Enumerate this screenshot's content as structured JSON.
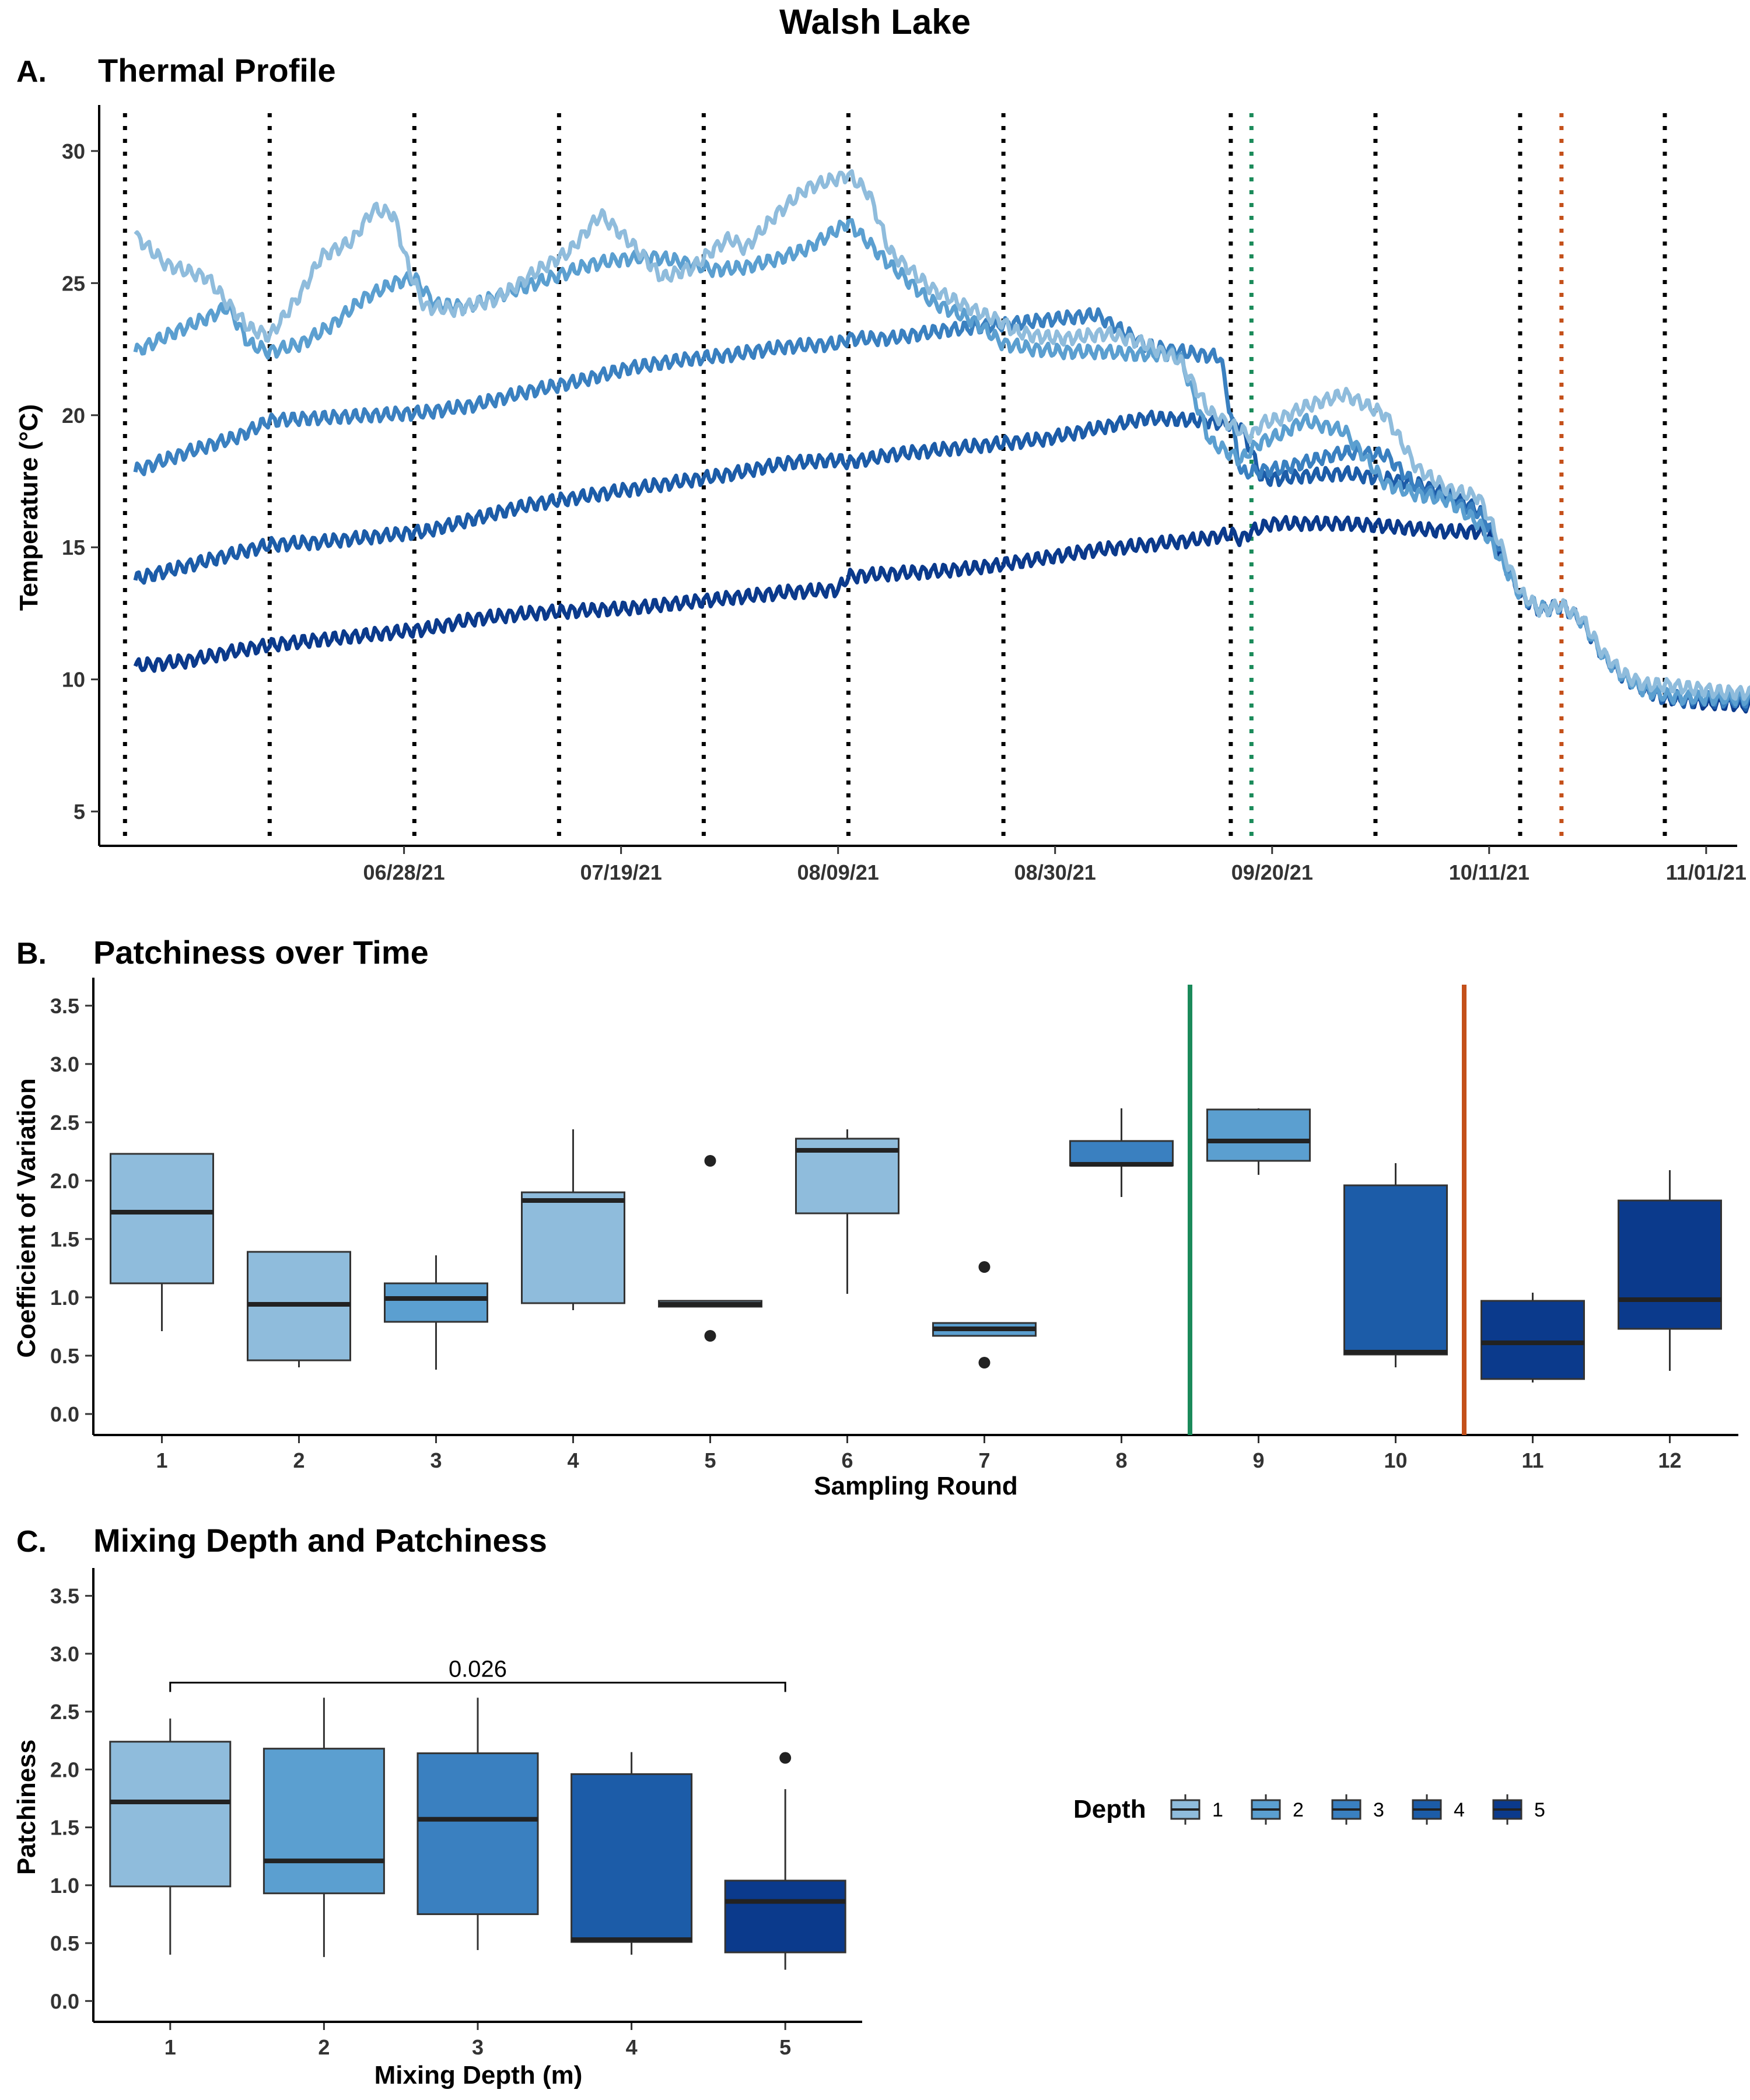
{
  "figure_title": "Walsh Lake",
  "colors": {
    "depth1": "#8fbcdc",
    "depth2": "#5b9fd0",
    "depth3": "#3a80c0",
    "depth4": "#1c5ca8",
    "depth5": "#0b3a8c",
    "green_line": "#1b8a5a",
    "orange_line": "#c4501a",
    "sampling_line": "#000000"
  },
  "chart_data": [
    {
      "id": "A",
      "panel_label": "A.",
      "type": "line",
      "title": "Thermal Profile",
      "xlabel": "",
      "ylabel": "Temperature (°C)",
      "ylim": [
        3.7,
        31.3
      ],
      "yticks": [
        5,
        10,
        15,
        20,
        25,
        30
      ],
      "xlim_days": [
        -16.5,
        142
      ],
      "x_ticks": [
        {
          "day": 13,
          "label": "06/28/21"
        },
        {
          "day": 34,
          "label": "07/19/21"
        },
        {
          "day": 55,
          "label": "08/09/21"
        },
        {
          "day": 76,
          "label": "08/30/21"
        },
        {
          "day": 97,
          "label": "09/20/21"
        },
        {
          "day": 118,
          "label": "10/11/21"
        },
        {
          "day": 139,
          "label": "11/01/21"
        }
      ],
      "sampling_days": [
        -14,
        0,
        14,
        28,
        42,
        56,
        71,
        93,
        107,
        121,
        135,
        146
      ],
      "green_line_day": 95,
      "orange_line_day": 125,
      "series": [
        {
          "name": "1",
          "x": [
            -13,
            -10,
            -6,
            -4,
            -2,
            0,
            3,
            5,
            8,
            10,
            12,
            13.5,
            15,
            18,
            22,
            26,
            29,
            32,
            35,
            38,
            41,
            43,
            44.5,
            46,
            49,
            52,
            56,
            58,
            60,
            64,
            68,
            71,
            72,
            74,
            77,
            81,
            84,
            88,
            91,
            94,
            95,
            96,
            98,
            100,
            104,
            108,
            111,
            114,
            117,
            118,
            121,
            123,
            125,
            127,
            129,
            131,
            133,
            135,
            137,
            139,
            141,
            143,
            146
          ],
          "y": [
            26.8,
            25.7,
            25.2,
            24.2,
            23.3,
            23.0,
            24.6,
            26.0,
            26.6,
            27.8,
            27.6,
            25.5,
            24.1,
            24.0,
            24.4,
            25.5,
            26.2,
            27.6,
            26.5,
            25.2,
            25.6,
            26.3,
            26.7,
            26.3,
            27.6,
            28.6,
            29.1,
            28.4,
            26.2,
            24.8,
            24.0,
            23.5,
            23.2,
            23.0,
            22.9,
            23.1,
            22.8,
            22.1,
            20.1,
            19.4,
            19.2,
            19.7,
            19.9,
            20.3,
            20.8,
            20.0,
            18.0,
            17.2,
            16.9,
            16.1,
            13.3,
            12.6,
            12.8,
            12.3,
            11.0,
            10.2,
            9.8,
            9.8,
            9.7,
            9.6,
            9.5,
            9.5,
            9.3
          ]
        },
        {
          "name": "2",
          "x": [
            -13,
            -10,
            -6,
            -4,
            -2,
            0,
            3,
            6,
            9,
            12,
            14,
            16,
            19,
            22,
            25,
            28,
            31,
            34,
            37,
            40,
            43,
            46,
            49,
            52,
            56,
            60,
            64,
            68,
            71,
            74,
            77,
            81,
            84,
            88,
            91,
            94,
            95,
            96,
            98,
            100,
            104,
            108,
            111,
            114,
            117,
            118,
            121,
            123,
            125,
            127,
            129,
            131,
            133,
            135,
            137,
            139,
            141,
            143,
            146
          ],
          "y": [
            22.4,
            23.0,
            23.7,
            24.1,
            22.7,
            22.4,
            22.7,
            23.4,
            24.4,
            25.0,
            25.2,
            24.2,
            24.1,
            24.5,
            24.9,
            25.3,
            25.7,
            25.9,
            26.0,
            25.8,
            25.5,
            25.6,
            25.9,
            26.3,
            27.3,
            25.7,
            24.3,
            23.6,
            22.7,
            22.5,
            22.4,
            22.4,
            22.3,
            22.3,
            19.0,
            18.3,
            18.7,
            19.0,
            19.3,
            19.8,
            19.4,
            17.4,
            17.0,
            16.8,
            15.9,
            15.3,
            13.2,
            12.7,
            12.8,
            12.2,
            10.9,
            10.1,
            9.6,
            9.4,
            9.3,
            9.3,
            9.3,
            9.3,
            9.1
          ]
        },
        {
          "name": "3",
          "x": [
            -13,
            -8,
            -3,
            0,
            5,
            10,
            15,
            20,
            25,
            30,
            35,
            40,
            45,
            50,
            55,
            56,
            60,
            65,
            70,
            75,
            80,
            85,
            90,
            92,
            94,
            96,
            98,
            100,
            104,
            108,
            111,
            114,
            117,
            118,
            121,
            123,
            125,
            127,
            129,
            131,
            133,
            135,
            137,
            139,
            141,
            143,
            146
          ],
          "y": [
            17.9,
            18.6,
            19.2,
            19.8,
            19.9,
            20.0,
            20.1,
            20.4,
            20.9,
            21.3,
            21.8,
            22.1,
            22.3,
            22.6,
            22.7,
            22.9,
            22.9,
            23.2,
            23.4,
            23.6,
            23.8,
            22.6,
            22.3,
            22.2,
            17.8,
            17.9,
            18.0,
            18.2,
            18.6,
            18.5,
            17.3,
            16.8,
            16.3,
            15.8,
            13.2,
            12.6,
            12.8,
            12.2,
            10.9,
            10.1,
            9.6,
            9.4,
            9.3,
            9.3,
            9.2,
            9.2,
            9.1
          ]
        },
        {
          "name": "4",
          "x": [
            -13,
            -8,
            -3,
            0,
            5,
            10,
            15,
            20,
            25,
            30,
            35,
            40,
            45,
            50,
            55,
            56,
            60,
            65,
            70,
            75,
            80,
            85,
            90,
            94,
            96,
            98,
            100,
            104,
            108,
            111,
            114,
            117,
            118,
            121,
            123,
            125,
            127,
            129,
            131,
            133,
            135,
            137,
            139,
            141,
            143,
            146
          ],
          "y": [
            13.8,
            14.3,
            14.8,
            15.1,
            15.2,
            15.4,
            15.6,
            16.1,
            16.6,
            16.9,
            17.2,
            17.5,
            17.8,
            18.2,
            18.3,
            18.2,
            18.5,
            18.7,
            18.9,
            19.1,
            19.5,
            19.9,
            19.8,
            19.6,
            17.6,
            17.6,
            17.7,
            17.8,
            17.6,
            17.4,
            17.0,
            16.4,
            15.8,
            13.2,
            12.6,
            12.8,
            12.2,
            10.9,
            10.1,
            9.6,
            9.3,
            9.2,
            9.2,
            9.2,
            9.1,
            9.0
          ]
        },
        {
          "name": "5",
          "x": [
            -13,
            -8,
            -3,
            0,
            5,
            10,
            15,
            20,
            25,
            30,
            35,
            40,
            45,
            50,
            55,
            56,
            60,
            65,
            70,
            75,
            80,
            85,
            90,
            93,
            94,
            95,
            97,
            100,
            104,
            108,
            111,
            114,
            117,
            118,
            121,
            123,
            125,
            127,
            129,
            131,
            133,
            135,
            137,
            139,
            141,
            143,
            146
          ],
          "y": [
            10.5,
            10.7,
            11.1,
            11.3,
            11.5,
            11.7,
            11.9,
            12.3,
            12.5,
            12.6,
            12.7,
            12.9,
            13.1,
            13.3,
            13.4,
            13.9,
            14.0,
            14.1,
            14.3,
            14.6,
            14.9,
            15.1,
            15.3,
            15.5,
            15.3,
            15.6,
            15.9,
            15.9,
            15.9,
            15.8,
            15.7,
            15.6,
            15.6,
            15.5,
            13.2,
            12.6,
            12.8,
            12.2,
            10.9,
            10.1,
            9.6,
            9.3,
            9.2,
            9.1,
            9.1,
            9.0,
            8.9
          ]
        }
      ]
    },
    {
      "id": "B",
      "panel_label": "B.",
      "type": "box",
      "title": "Patchiness over Time",
      "xlabel": "Sampling Round",
      "ylabel": "Coefficient of Variation",
      "ylim": [
        -0.18,
        3.68
      ],
      "yticks": [
        "0.0",
        "0.5",
        "1.0",
        "1.5",
        "2.0",
        "2.5",
        "3.0",
        "3.5"
      ],
      "green_line_after_round": 8.5,
      "orange_line_after_round": 10.5,
      "boxes": [
        {
          "label": "1",
          "mixing_depth": 1,
          "whisker_low": 0.71,
          "q1": 1.12,
          "median": 1.73,
          "q3": 2.23,
          "whisker_high": 2.23,
          "outliers": []
        },
        {
          "label": "2",
          "mixing_depth": 1,
          "whisker_low": 0.4,
          "q1": 0.46,
          "median": 0.94,
          "q3": 1.39,
          "whisker_high": 1.39,
          "outliers": []
        },
        {
          "label": "3",
          "mixing_depth": 2,
          "whisker_low": 0.38,
          "q1": 0.79,
          "median": 0.99,
          "q3": 1.12,
          "whisker_high": 1.36,
          "outliers": []
        },
        {
          "label": "4",
          "mixing_depth": 1,
          "whisker_low": 0.89,
          "q1": 0.95,
          "median": 1.83,
          "q3": 1.9,
          "whisker_high": 2.44,
          "outliers": []
        },
        {
          "label": "5",
          "mixing_depth": 1,
          "whisker_low": 0.92,
          "q1": 0.92,
          "median": 0.94,
          "q3": 0.97,
          "whisker_high": 0.97,
          "outliers": [
            0.67,
            2.17
          ]
        },
        {
          "label": "6",
          "mixing_depth": 1,
          "whisker_low": 1.03,
          "q1": 1.72,
          "median": 2.26,
          "q3": 2.36,
          "whisker_high": 2.44,
          "outliers": []
        },
        {
          "label": "7",
          "mixing_depth": 2,
          "whisker_low": 0.67,
          "q1": 0.67,
          "median": 0.73,
          "q3": 0.78,
          "whisker_high": 0.78,
          "outliers": [
            0.44,
            1.26
          ]
        },
        {
          "label": "8",
          "mixing_depth": 3,
          "whisker_low": 1.86,
          "q1": 2.13,
          "median": 2.14,
          "q3": 2.34,
          "whisker_high": 2.62,
          "outliers": []
        },
        {
          "label": "9",
          "mixing_depth": 2,
          "whisker_low": 2.05,
          "q1": 2.17,
          "median": 2.34,
          "q3": 2.61,
          "whisker_high": 2.62,
          "outliers": []
        },
        {
          "label": "10",
          "mixing_depth": 4,
          "whisker_low": 0.4,
          "q1": 0.51,
          "median": 0.53,
          "q3": 1.96,
          "whisker_high": 2.15,
          "outliers": []
        },
        {
          "label": "11",
          "mixing_depth": 5,
          "whisker_low": 0.27,
          "q1": 0.3,
          "median": 0.61,
          "q3": 0.97,
          "whisker_high": 1.04,
          "outliers": []
        },
        {
          "label": "12",
          "mixing_depth": 5,
          "whisker_low": 0.37,
          "q1": 0.73,
          "median": 0.98,
          "q3": 1.83,
          "whisker_high": 2.09,
          "outliers": []
        }
      ]
    },
    {
      "id": "C",
      "panel_label": "C.",
      "type": "box",
      "title": "Mixing Depth and Patchiness",
      "xlabel": "Mixing Depth (m)",
      "ylabel": "Patchiness",
      "ylim": [
        -0.18,
        3.68
      ],
      "yticks": [
        "0.0",
        "0.5",
        "1.0",
        "1.5",
        "2.0",
        "2.5",
        "3.0",
        "3.5"
      ],
      "comparison": {
        "from": "1",
        "to": "5",
        "y": 2.75,
        "label": "0.026"
      },
      "boxes": [
        {
          "label": "1",
          "mixing_depth": 1,
          "whisker_low": 0.4,
          "q1": 0.99,
          "median": 1.72,
          "q3": 2.24,
          "whisker_high": 2.44,
          "outliers": []
        },
        {
          "label": "2",
          "mixing_depth": 2,
          "whisker_low": 0.38,
          "q1": 0.93,
          "median": 1.21,
          "q3": 2.18,
          "whisker_high": 2.62,
          "outliers": []
        },
        {
          "label": "3",
          "mixing_depth": 3,
          "whisker_low": 0.44,
          "q1": 0.75,
          "median": 1.57,
          "q3": 2.14,
          "whisker_high": 2.62,
          "outliers": []
        },
        {
          "label": "4",
          "mixing_depth": 4,
          "whisker_low": 0.4,
          "q1": 0.51,
          "median": 0.53,
          "q3": 1.96,
          "whisker_high": 2.15,
          "outliers": []
        },
        {
          "label": "5",
          "mixing_depth": 5,
          "whisker_low": 0.27,
          "q1": 0.42,
          "median": 0.86,
          "q3": 1.04,
          "whisker_high": 1.83,
          "outliers": [
            2.1
          ]
        }
      ]
    }
  ],
  "legend": {
    "title": "Depth",
    "items": [
      "1",
      "2",
      "3",
      "4",
      "5"
    ]
  }
}
